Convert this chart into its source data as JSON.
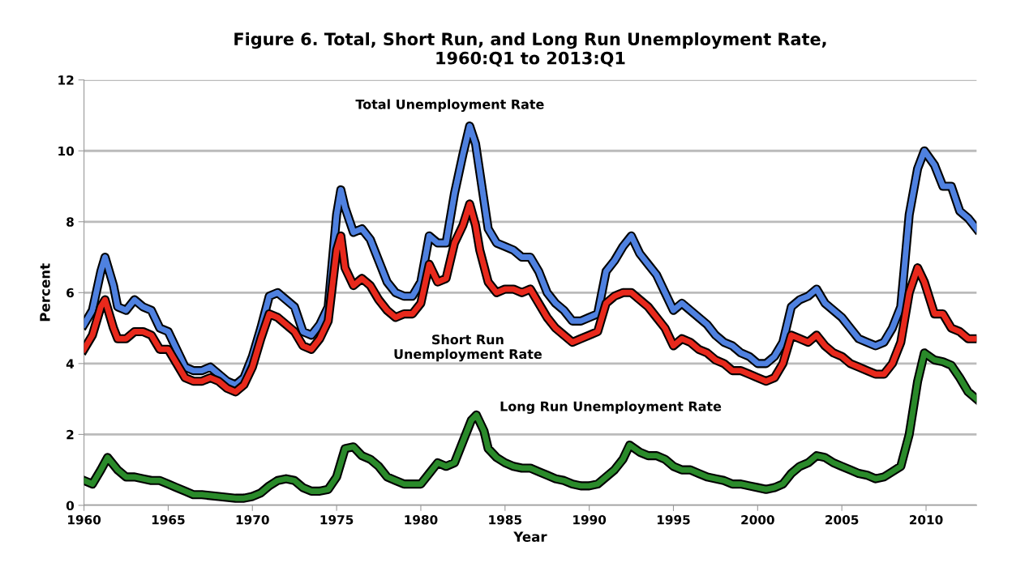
{
  "chart_data": {
    "type": "line",
    "title": "Figure 6. Total, Short Run, and Long Run Unemployment Rate,\n1960:Q1 to 2013:Q1",
    "xlabel": "Year",
    "ylabel": "Percent",
    "xlim": [
      1960,
      2013
    ],
    "xticks": [
      1960,
      1965,
      1970,
      1975,
      1980,
      1985,
      1990,
      1995,
      2000,
      2005,
      2010
    ],
    "ylim": [
      0,
      12
    ],
    "yticks": [
      0,
      2,
      4,
      6,
      8,
      10,
      12
    ],
    "grid": "y",
    "legend": false,
    "marker": "none",
    "line_style": "solid",
    "series": [
      {
        "name": "Total Unemployment Rate",
        "color": "#4f81e0",
        "x": [
          1960.0,
          1960.5,
          1961.0,
          1961.25,
          1961.75,
          1962.0,
          1962.5,
          1963.0,
          1963.5,
          1964.0,
          1964.5,
          1965.0,
          1965.5,
          1966.0,
          1966.5,
          1967.0,
          1967.5,
          1968.0,
          1968.5,
          1969.0,
          1969.5,
          1970.0,
          1970.5,
          1971.0,
          1971.5,
          1972.0,
          1972.5,
          1973.0,
          1973.5,
          1974.0,
          1974.5,
          1975.0,
          1975.25,
          1975.5,
          1976.0,
          1976.5,
          1977.0,
          1977.5,
          1978.0,
          1978.5,
          1979.0,
          1979.5,
          1980.0,
          1980.5,
          1981.0,
          1981.5,
          1982.0,
          1982.5,
          1982.9,
          1983.25,
          1983.5,
          1984.0,
          1984.5,
          1985.0,
          1985.5,
          1986.0,
          1986.5,
          1987.0,
          1987.5,
          1988.0,
          1988.5,
          1989.0,
          1989.5,
          1990.0,
          1990.5,
          1991.0,
          1991.5,
          1992.0,
          1992.5,
          1993.0,
          1993.5,
          1994.0,
          1994.5,
          1995.0,
          1995.5,
          1996.0,
          1996.5,
          1997.0,
          1997.5,
          1998.0,
          1998.5,
          1999.0,
          1999.5,
          2000.0,
          2000.5,
          2001.0,
          2001.5,
          2002.0,
          2002.5,
          2003.0,
          2003.5,
          2004.0,
          2004.5,
          2005.0,
          2005.5,
          2006.0,
          2006.5,
          2007.0,
          2007.5,
          2008.0,
          2008.5,
          2009.0,
          2009.5,
          2009.9,
          2010.5,
          2011.0,
          2011.5,
          2012.0,
          2012.5,
          2013.0
        ],
        "values": [
          5.1,
          5.5,
          6.6,
          7.0,
          6.2,
          5.6,
          5.5,
          5.8,
          5.6,
          5.5,
          5.0,
          4.9,
          4.4,
          3.9,
          3.8,
          3.8,
          3.9,
          3.7,
          3.5,
          3.4,
          3.6,
          4.2,
          5.0,
          5.9,
          6.0,
          5.8,
          5.6,
          4.9,
          4.8,
          5.1,
          5.6,
          8.2,
          8.9,
          8.4,
          7.7,
          7.8,
          7.5,
          6.9,
          6.3,
          6.0,
          5.9,
          5.9,
          6.3,
          7.6,
          7.4,
          7.4,
          8.8,
          9.9,
          10.7,
          10.2,
          9.4,
          7.8,
          7.4,
          7.3,
          7.2,
          7.0,
          7.0,
          6.6,
          6.0,
          5.7,
          5.5,
          5.2,
          5.2,
          5.3,
          5.4,
          6.6,
          6.9,
          7.3,
          7.6,
          7.1,
          6.8,
          6.5,
          6.0,
          5.5,
          5.7,
          5.5,
          5.3,
          5.1,
          4.8,
          4.6,
          4.5,
          4.3,
          4.2,
          4.0,
          4.0,
          4.2,
          4.6,
          5.6,
          5.8,
          5.9,
          6.1,
          5.7,
          5.5,
          5.3,
          5.0,
          4.7,
          4.6,
          4.5,
          4.6,
          5.0,
          5.6,
          8.2,
          9.5,
          10.0,
          9.6,
          9.0,
          9.0,
          8.3,
          8.1,
          7.8
        ]
      },
      {
        "name": "Short Run\nUnemployment Rate",
        "color": "#e8291c",
        "x": [
          1960.0,
          1960.5,
          1961.0,
          1961.25,
          1961.75,
          1962.0,
          1962.5,
          1963.0,
          1963.5,
          1964.0,
          1964.5,
          1965.0,
          1965.5,
          1966.0,
          1966.5,
          1967.0,
          1967.5,
          1968.0,
          1968.5,
          1969.0,
          1969.5,
          1970.0,
          1970.5,
          1971.0,
          1971.5,
          1972.0,
          1972.5,
          1973.0,
          1973.5,
          1974.0,
          1974.5,
          1975.0,
          1975.25,
          1975.5,
          1976.0,
          1976.5,
          1977.0,
          1977.5,
          1978.0,
          1978.5,
          1979.0,
          1979.5,
          1980.0,
          1980.5,
          1981.0,
          1981.5,
          1982.0,
          1982.5,
          1982.9,
          1983.25,
          1983.5,
          1984.0,
          1984.5,
          1985.0,
          1985.5,
          1986.0,
          1986.5,
          1987.0,
          1987.5,
          1988.0,
          1988.5,
          1989.0,
          1989.5,
          1990.0,
          1990.5,
          1991.0,
          1991.5,
          1992.0,
          1992.5,
          1993.0,
          1993.5,
          1994.0,
          1994.5,
          1995.0,
          1995.5,
          1996.0,
          1996.5,
          1997.0,
          1997.5,
          1998.0,
          1998.5,
          1999.0,
          1999.5,
          2000.0,
          2000.5,
          2001.0,
          2001.5,
          2002.0,
          2002.5,
          2003.0,
          2003.5,
          2004.0,
          2004.5,
          2005.0,
          2005.5,
          2006.0,
          2006.5,
          2007.0,
          2007.5,
          2008.0,
          2008.5,
          2009.0,
          2009.5,
          2009.9,
          2010.5,
          2011.0,
          2011.5,
          2012.0,
          2012.5,
          2013.0
        ],
        "values": [
          4.4,
          4.8,
          5.6,
          5.8,
          5.0,
          4.7,
          4.7,
          4.9,
          4.9,
          4.8,
          4.4,
          4.4,
          4.0,
          3.6,
          3.5,
          3.5,
          3.6,
          3.5,
          3.3,
          3.2,
          3.4,
          3.9,
          4.7,
          5.4,
          5.3,
          5.1,
          4.9,
          4.5,
          4.4,
          4.7,
          5.2,
          7.2,
          7.6,
          6.7,
          6.2,
          6.4,
          6.2,
          5.8,
          5.5,
          5.3,
          5.4,
          5.4,
          5.7,
          6.8,
          6.3,
          6.4,
          7.4,
          7.9,
          8.5,
          7.9,
          7.2,
          6.3,
          6.0,
          6.1,
          6.1,
          6.0,
          6.1,
          5.7,
          5.3,
          5.0,
          4.8,
          4.6,
          4.7,
          4.8,
          4.9,
          5.7,
          5.9,
          6.0,
          6.0,
          5.8,
          5.6,
          5.3,
          5.0,
          4.5,
          4.7,
          4.6,
          4.4,
          4.3,
          4.1,
          4.0,
          3.8,
          3.8,
          3.7,
          3.6,
          3.5,
          3.6,
          4.0,
          4.8,
          4.7,
          4.6,
          4.8,
          4.5,
          4.3,
          4.2,
          4.0,
          3.9,
          3.8,
          3.7,
          3.7,
          4.0,
          4.6,
          6.0,
          6.7,
          6.3,
          5.4,
          5.4,
          5.0,
          4.9,
          4.7,
          4.7
        ]
      },
      {
        "name": "Long Run Unemployment Rate",
        "color": "#2a8a2a",
        "x": [
          1960.0,
          1960.5,
          1961.0,
          1961.4,
          1962.0,
          1962.5,
          1963.0,
          1963.5,
          1964.0,
          1964.5,
          1965.0,
          1965.5,
          1966.0,
          1966.5,
          1967.0,
          1968.0,
          1969.0,
          1969.5,
          1970.0,
          1970.5,
          1971.0,
          1971.5,
          1972.0,
          1972.5,
          1973.0,
          1973.5,
          1974.0,
          1974.5,
          1975.0,
          1975.5,
          1976.0,
          1976.5,
          1977.0,
          1977.5,
          1978.0,
          1978.5,
          1979.0,
          1979.5,
          1980.0,
          1980.5,
          1981.0,
          1981.5,
          1982.0,
          1982.5,
          1983.0,
          1983.3,
          1983.75,
          1984.0,
          1984.5,
          1985.0,
          1985.5,
          1986.0,
          1986.5,
          1987.0,
          1987.5,
          1988.0,
          1988.5,
          1989.0,
          1989.5,
          1990.0,
          1990.5,
          1991.0,
          1991.5,
          1992.0,
          1992.4,
          1993.0,
          1993.5,
          1994.0,
          1994.5,
          1995.0,
          1995.5,
          1996.0,
          1996.5,
          1997.0,
          1997.5,
          1998.0,
          1998.5,
          1999.0,
          1999.5,
          2000.0,
          2000.5,
          2001.0,
          2001.5,
          2002.0,
          2002.5,
          2003.0,
          2003.5,
          2004.0,
          2004.5,
          2005.0,
          2005.5,
          2006.0,
          2006.5,
          2007.0,
          2007.5,
          2008.0,
          2008.5,
          2009.0,
          2009.5,
          2009.9,
          2010.5,
          2011.0,
          2011.5,
          2012.0,
          2012.5,
          2013.0
        ],
        "values": [
          0.7,
          0.6,
          1.0,
          1.35,
          1.0,
          0.8,
          0.8,
          0.75,
          0.7,
          0.7,
          0.6,
          0.5,
          0.4,
          0.3,
          0.3,
          0.25,
          0.2,
          0.2,
          0.25,
          0.35,
          0.55,
          0.7,
          0.75,
          0.7,
          0.5,
          0.4,
          0.4,
          0.45,
          0.8,
          1.6,
          1.65,
          1.4,
          1.3,
          1.1,
          0.8,
          0.7,
          0.6,
          0.6,
          0.6,
          0.9,
          1.2,
          1.1,
          1.2,
          1.8,
          2.4,
          2.55,
          2.1,
          1.6,
          1.35,
          1.2,
          1.1,
          1.05,
          1.05,
          0.95,
          0.85,
          0.75,
          0.7,
          0.6,
          0.55,
          0.55,
          0.6,
          0.8,
          1.0,
          1.3,
          1.7,
          1.5,
          1.4,
          1.4,
          1.3,
          1.1,
          1.0,
          1.0,
          0.9,
          0.8,
          0.75,
          0.7,
          0.6,
          0.6,
          0.55,
          0.5,
          0.45,
          0.5,
          0.6,
          0.9,
          1.1,
          1.2,
          1.4,
          1.35,
          1.2,
          1.1,
          1.0,
          0.9,
          0.85,
          0.75,
          0.8,
          0.95,
          1.1,
          2.0,
          3.5,
          4.3,
          4.1,
          4.05,
          3.95,
          3.6,
          3.2,
          3.0
        ]
      }
    ]
  }
}
